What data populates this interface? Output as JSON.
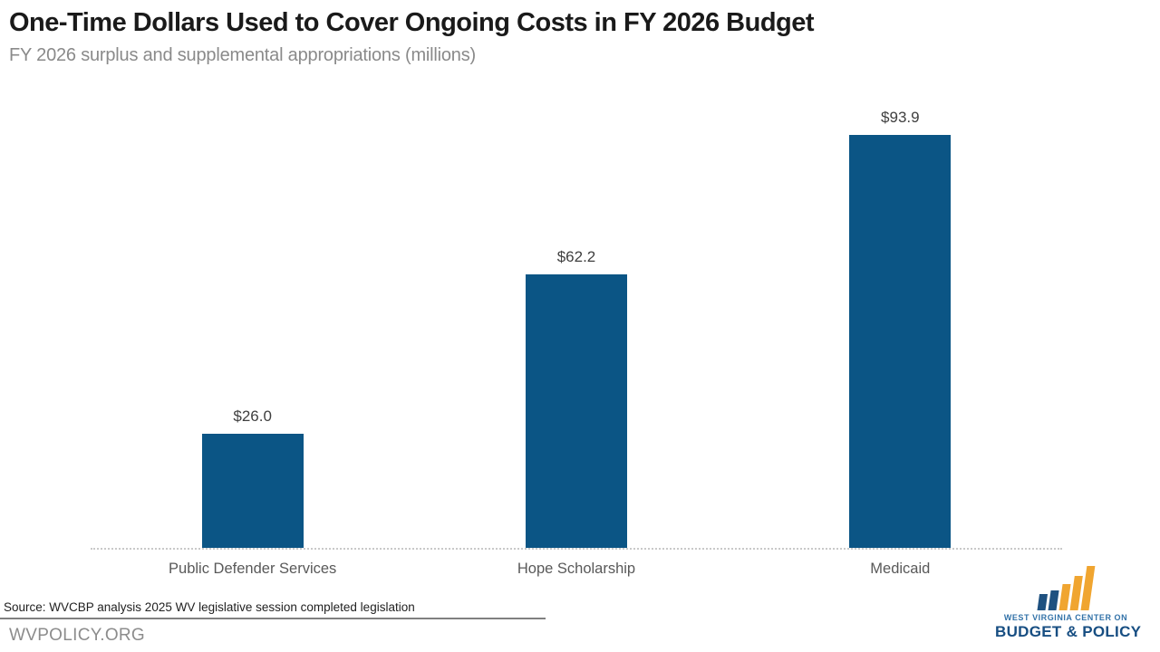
{
  "header": {
    "title": "One-Time Dollars Used to Cover Ongoing Costs in FY 2026 Budget",
    "subtitle": "FY 2026 surplus and supplemental appropriations (millions)"
  },
  "chart_data": {
    "type": "bar",
    "title": "One-Time Dollars Used to Cover Ongoing Costs in FY 2026 Budget",
    "subtitle": "FY 2026 surplus and supplemental appropriations (millions)",
    "categories": [
      "Public Defender Services",
      "Hope Scholarship",
      "Medicaid"
    ],
    "values": [
      26.0,
      62.2,
      93.9
    ],
    "value_labels": [
      "$26.0",
      "$62.2",
      "$93.9"
    ],
    "xlabel": "",
    "ylabel": "",
    "ylim": [
      0,
      100
    ],
    "grid": false,
    "legend": false,
    "bar_color": "#0b5585",
    "axis_line_style": "dotted",
    "value_label_color": "#3f3f3f",
    "category_label_color": "#595959"
  },
  "footer": {
    "source": "Source: WVCBP analysis 2025 WV legislative session completed legislation",
    "website": "WVPOLICY.ORG"
  },
  "logo": {
    "line1": "WEST VIRGINIA CENTER ON",
    "line2": "BUDGET & POLICY",
    "blue_bar_color": "#1e5180",
    "gold_bar_color": "#f0a530",
    "line1_color": "#3272a8",
    "line2_color": "#174e82"
  }
}
